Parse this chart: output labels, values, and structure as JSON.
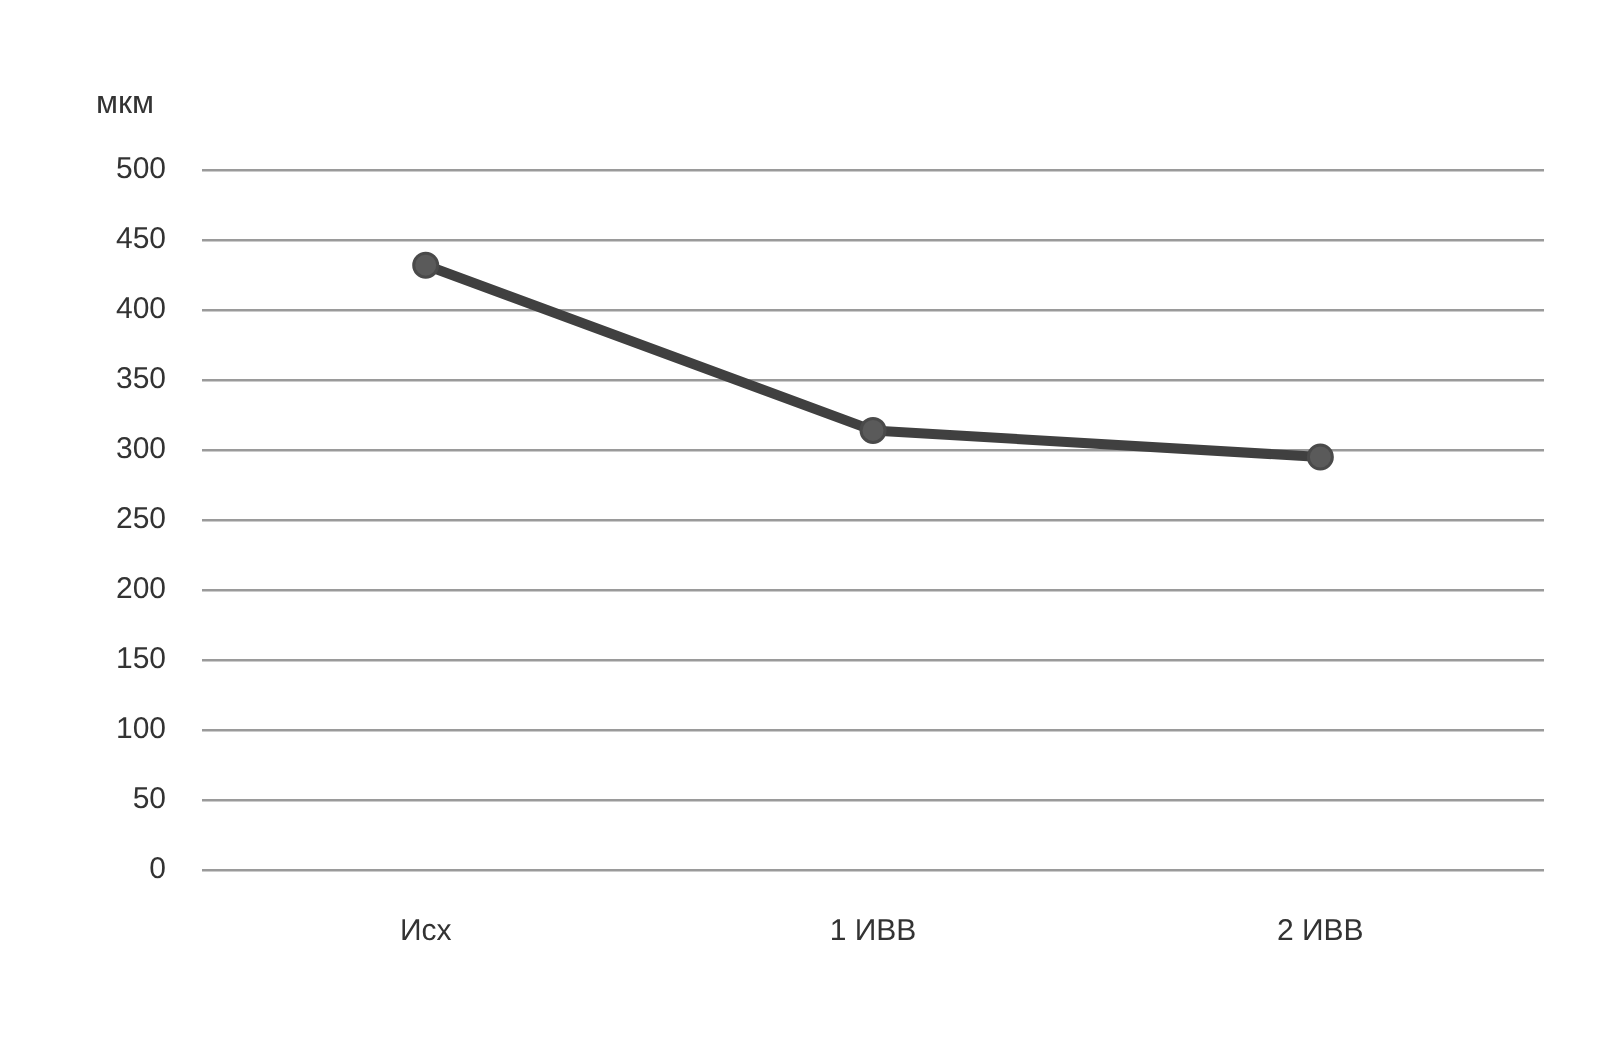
{
  "chart_data": {
    "type": "line",
    "ylabel": "мкм",
    "categories": [
      "Исх",
      "1 ИВВ",
      "2 ИВВ"
    ],
    "series": [
      {
        "color": "#404040",
        "values": [
          432,
          314,
          295
        ]
      }
    ],
    "ylim": [
      0,
      500
    ],
    "yticks": [
      0,
      50,
      100,
      150,
      200,
      250,
      300,
      350,
      400,
      450,
      500
    ],
    "grid": "y",
    "legend": false,
    "marker": "circle",
    "line_style": "solid"
  }
}
